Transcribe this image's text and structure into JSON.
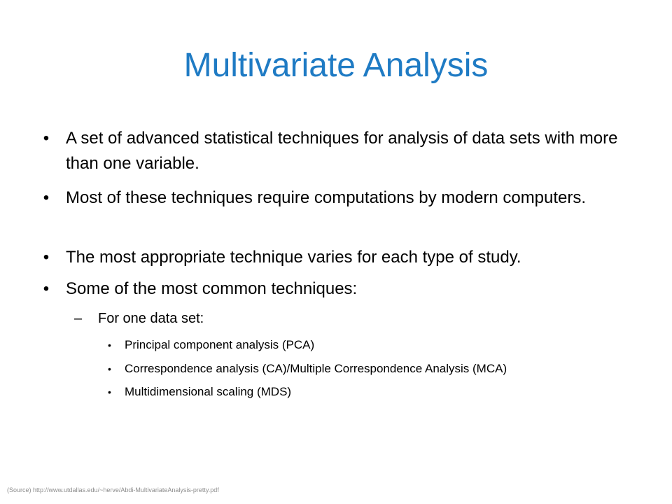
{
  "slide": {
    "title": "Multivariate Analysis",
    "title_color": "#1f7bc4",
    "bullets": [
      {
        "marker": "•",
        "text": "A set of advanced statistical techniques for analysis of data sets with more than one variable."
      },
      {
        "marker": "•",
        "text": "Most of these techniques require computations by modern computers."
      },
      {
        "marker": "•",
        "text": "The most appropriate technique varies for each type of study."
      },
      {
        "marker": "•",
        "text": "Some of the most common techniques:"
      }
    ],
    "subheading": {
      "marker": "–",
      "text": "For one data set:"
    },
    "sub_items": [
      {
        "marker": "•",
        "text": "Principal component analysis (PCA)"
      },
      {
        "marker": "•",
        "text": "Correspondence analysis (CA)/Multiple Correspondence Analysis (MCA)"
      },
      {
        "marker": "•",
        "text": "Multidimensional scaling (MDS)"
      }
    ],
    "source": "(Source) http://www.utdallas.edu/~herve/Abdi-MultivariateAnalysis-pretty.pdf"
  }
}
